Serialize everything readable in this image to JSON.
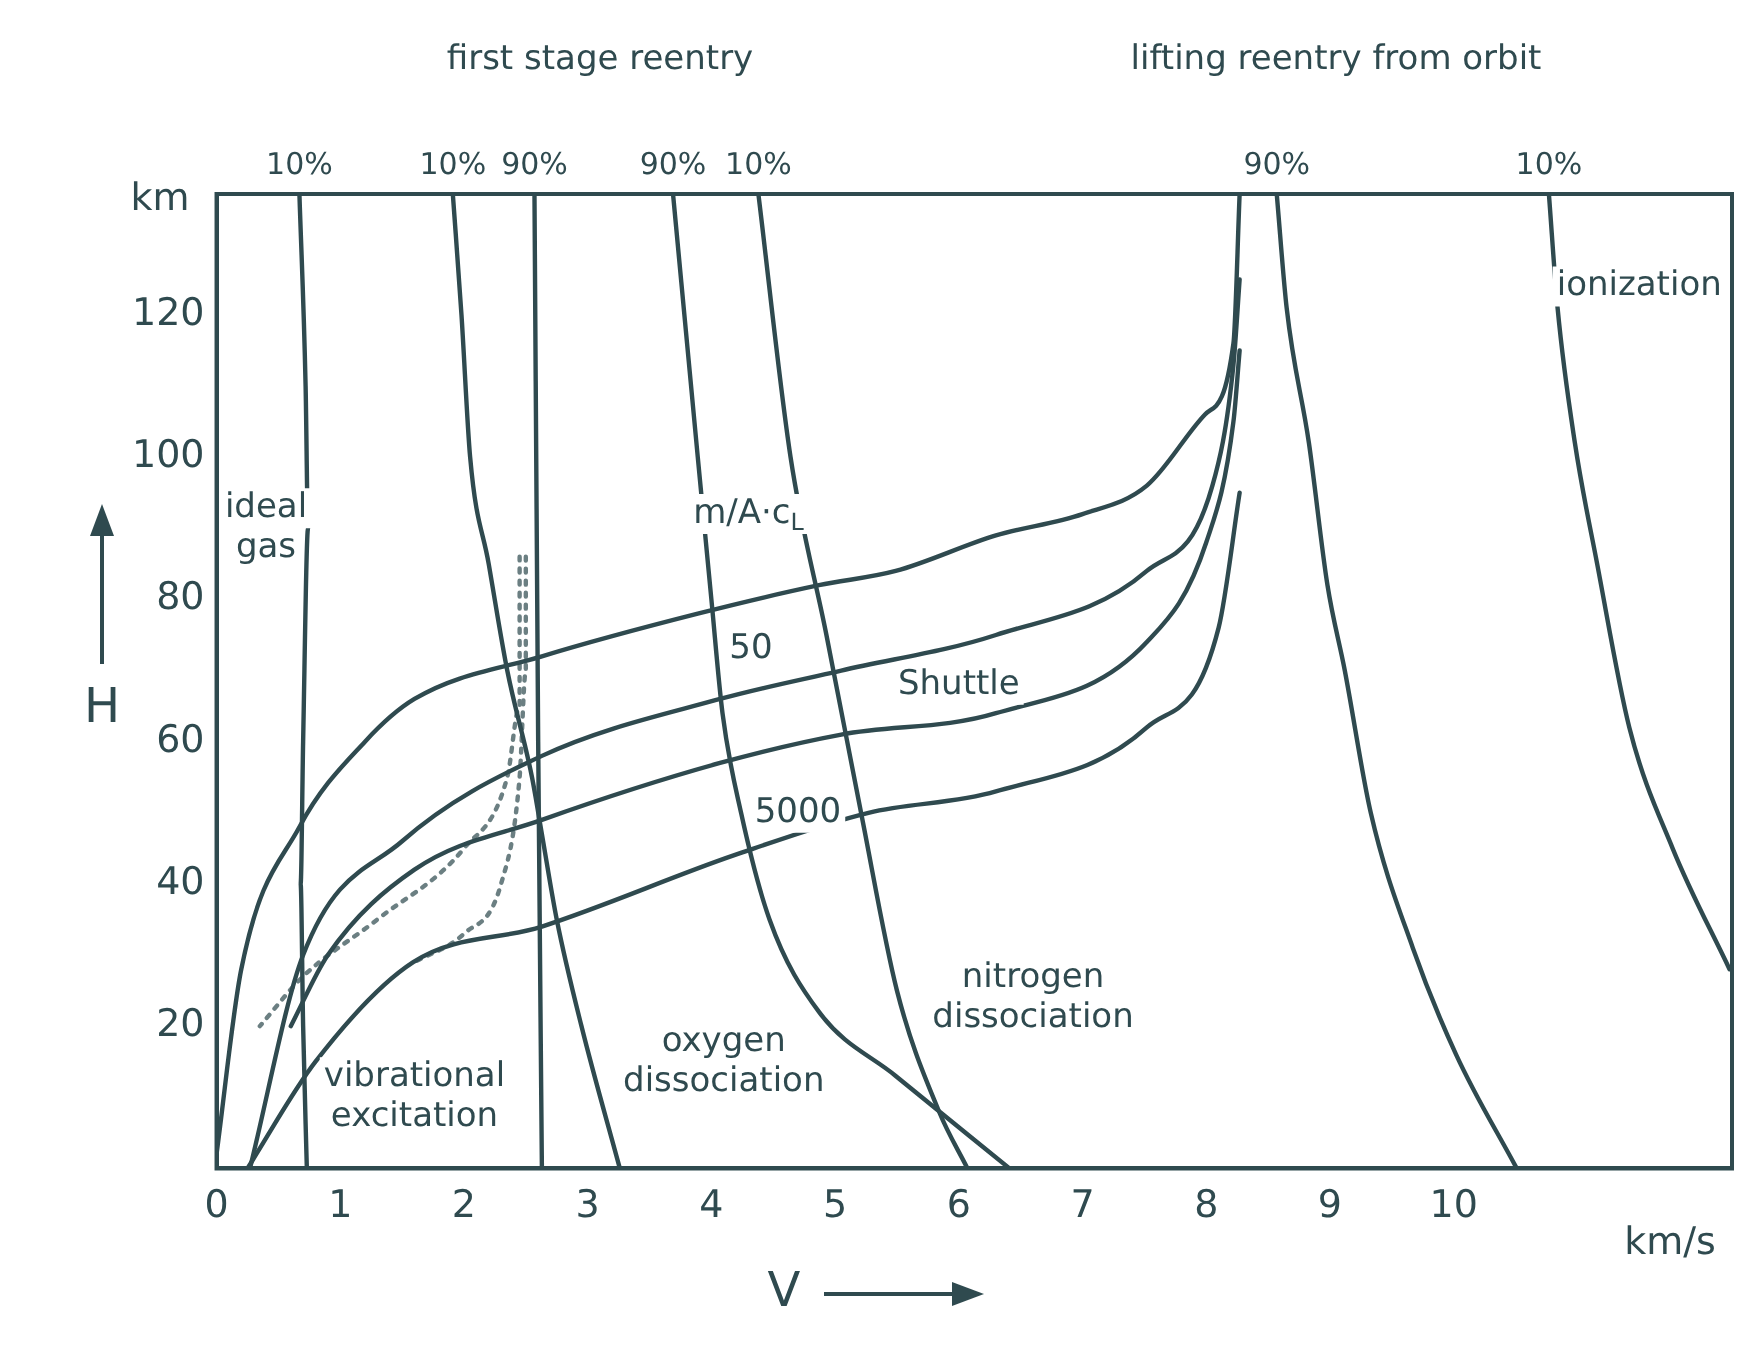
{
  "chart_data": {
    "type": "line",
    "xlabel": "V",
    "ylabel": "H",
    "xlim": [
      0,
      12.25
    ],
    "ylim": [
      0,
      137
    ],
    "xticks": [
      0,
      1,
      2,
      3,
      4,
      5,
      6,
      7,
      8,
      9,
      10
    ],
    "yticks": [
      20,
      40,
      60,
      80,
      100,
      120
    ],
    "grid": false,
    "legend": false,
    "marker": "none",
    "line_style": "solid",
    "series": [
      {
        "color": "#2f4a4f",
        "x": [
          0.67,
          0.72,
          0.74,
          0.7,
          0.68,
          0.7,
          0.73
        ],
        "values": [
          137,
          110,
          90,
          60,
          40,
          20,
          0
        ]
      },
      {
        "color": "#2f4a4f",
        "x": [
          1.91,
          1.98,
          2.05,
          2.2,
          2.35,
          2.55,
          2.63,
          2.75,
          2.95,
          3.26
        ],
        "values": [
          137,
          120,
          100,
          85,
          70,
          55,
          47,
          35,
          20,
          0
        ]
      },
      {
        "color": "#2f4a4f",
        "x": [
          2.57,
          2.6,
          2.63
        ],
        "values": [
          137,
          60,
          0
        ]
      },
      {
        "color": "#2f4a4f",
        "x": [
          3.69,
          3.89,
          4.0,
          4.09,
          4.24,
          4.47,
          4.87,
          5.49,
          6.41
        ],
        "values": [
          137,
          100,
          80,
          64,
          50,
          35,
          22,
          13,
          0
        ]
      },
      {
        "color": "#2f4a4f",
        "x": [
          4.38,
          4.64,
          4.93,
          5.21,
          5.5,
          5.84,
          6.07
        ],
        "values": [
          137,
          100,
          75,
          50,
          25,
          8,
          0
        ]
      },
      {
        "color": "#2f4a4f",
        "x": [
          8.57,
          8.65,
          8.83,
          8.98,
          9.12,
          9.33,
          9.67,
          10.02,
          10.51
        ],
        "values": [
          137,
          121,
          102,
          82,
          70,
          50,
          31,
          16,
          0
        ]
      },
      {
        "color": "#2f4a4f",
        "x": [
          10.77,
          10.84,
          10.98,
          11.16,
          11.42,
          11.77,
          12.23
        ],
        "values": [
          137,
          121,
          102,
          85,
          62,
          45,
          28
        ]
      },
      {
        "color": "#2f4a4f",
        "x": [
          0,
          0.2,
          0.67,
          1.2,
          1.6,
          2.63,
          3.89,
          4.87,
          5.49,
          6.3,
          7.0,
          7.52,
          7.99,
          8.22,
          8.27
        ],
        "values": [
          2,
          28,
          48,
          60,
          66,
          72,
          78,
          82,
          84,
          89,
          92,
          96,
          106,
          116,
          137
        ]
      },
      {
        "color": "#2f4a4f",
        "x": [
          0.27,
          0.7,
          1.5,
          2.63,
          4.07,
          5.05,
          6.3,
          7.52,
          8.05,
          8.22,
          8.27
        ],
        "values": [
          0,
          30,
          46,
          58,
          66,
          70,
          75,
          84,
          96,
          113,
          125
        ]
      },
      {
        "color": "#2f4a4f",
        "x": [
          0.6,
          0.9,
          1.6,
          2.63,
          4.07,
          5.05,
          6.3,
          7.52,
          8.0,
          8.22,
          8.27
        ],
        "values": [
          20,
          30,
          42,
          49,
          57,
          61,
          64,
          74,
          88,
          105,
          115
        ]
      },
      {
        "color": "#2f4a4f",
        "x": [
          0.25,
          0.8,
          1.59,
          2.63,
          4.18,
          5.27,
          6.3,
          7.52,
          8.1,
          8.27
        ],
        "values": [
          0,
          15,
          29,
          34,
          44,
          50,
          53,
          62,
          76,
          95
        ]
      },
      {
        "color": "#6b7f82",
        "line_style": "dotted",
        "x": [
          2.5,
          2.5,
          2.45,
          2.3,
          2.0,
          1.6
        ],
        "values": [
          86,
          70,
          55,
          40,
          33,
          29
        ]
      },
      {
        "color": "#6b7f82",
        "line_style": "dotted",
        "x": [
          2.45,
          2.45,
          2.35,
          2.0,
          1.3,
          0.7,
          0.35
        ],
        "values": [
          86,
          65,
          55,
          45,
          35,
          27,
          20
        ]
      }
    ],
    "annotations": [
      "first stage reentry",
      "lifting reentry from orbit",
      "km",
      "km/s",
      "ideal gas",
      "vibrational excitation",
      "oxygen dissociation",
      "nitrogen dissociation",
      "ionization",
      "m/A·c$_{L}$",
      "50",
      "Shuttle",
      "5000",
      {
        "text": "10%",
        "x": 0.67,
        "y": 137
      },
      {
        "text": "10%",
        "x": 1.91,
        "y": 137
      },
      {
        "text": "90%",
        "x": 2.57,
        "y": 137
      },
      {
        "text": "90%",
        "x": 3.69,
        "y": 137
      },
      {
        "text": "10%",
        "x": 4.38,
        "y": 137
      },
      {
        "text": "90%",
        "x": 8.57,
        "y": 137
      },
      {
        "text": "10%",
        "x": 10.77,
        "y": 137
      }
    ]
  }
}
